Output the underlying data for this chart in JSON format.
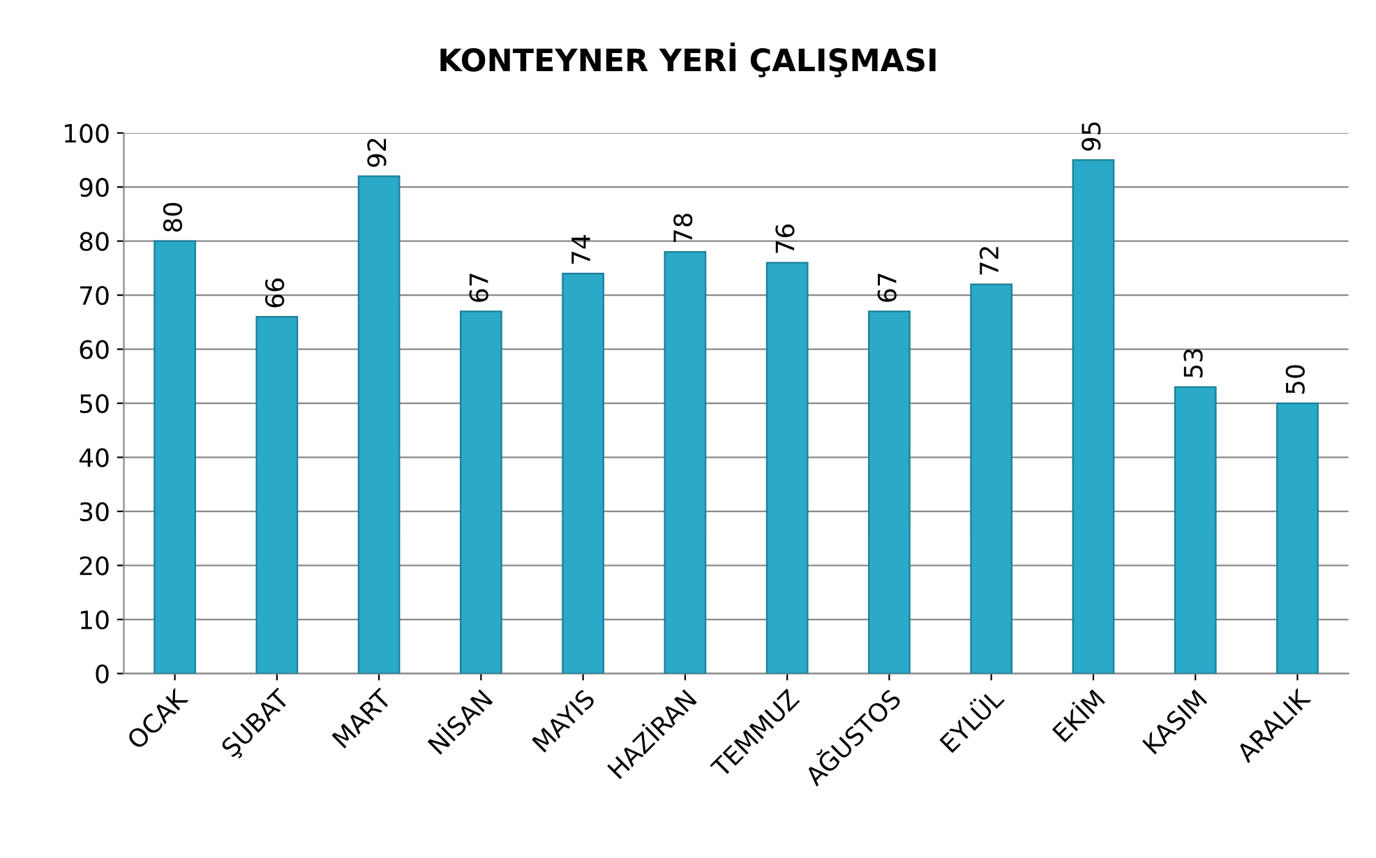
{
  "chart_data": {
    "type": "bar",
    "title": "KONTEYNER YERİ ÇALIŞMASI",
    "categories": [
      "OCAK",
      "ŞUBAT",
      "MART",
      "NİSAN",
      "MAYIS",
      "HAZİRAN",
      "TEMMUZ",
      "AĞUSTOS",
      "EYLÜL",
      "EKİM",
      "KASIM",
      "ARALIK"
    ],
    "values": [
      80,
      66,
      92,
      67,
      74,
      78,
      76,
      67,
      72,
      95,
      53,
      50
    ],
    "color": "#2aa9c9",
    "ylim": [
      0,
      100
    ],
    "yticks": [
      0,
      10,
      20,
      30,
      40,
      50,
      60,
      70,
      80,
      90,
      100
    ],
    "grid": "y",
    "data_labels": true
  }
}
